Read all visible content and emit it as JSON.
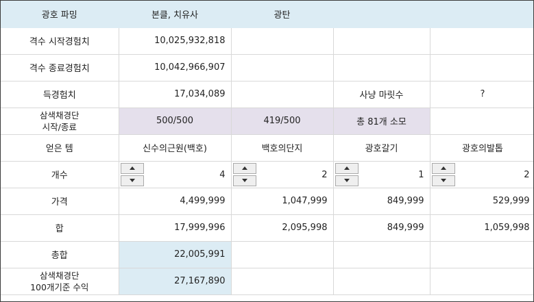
{
  "header": {
    "title": "광호 파밍",
    "col1": "본클, 치유사",
    "col2": "광탄"
  },
  "rows": {
    "start_exp": {
      "label": "격수 시작경험치",
      "value": "10,025,932,818"
    },
    "end_exp": {
      "label": "격수 종료경험치",
      "value": "10,042,966,907"
    },
    "gained_exp": {
      "label": "득경험치",
      "value": "17,034,089",
      "hunt_label": "사냥 마릿수",
      "hunt_value": "?"
    },
    "dice": {
      "label_line1": "삼색채경단",
      "label_line2": "시작/종료",
      "v1": "500/500",
      "v2": "419/500",
      "v3": "총 81개 소모"
    },
    "items": {
      "label": "얻은 템",
      "names": [
        "신수의근원(백호)",
        "백호의단지",
        "광호갈기",
        "광호의발톱"
      ]
    },
    "count": {
      "label": "개수",
      "values": [
        "4",
        "2",
        "1",
        "2"
      ]
    },
    "price": {
      "label": "가격",
      "values": [
        "4,499,999",
        "1,047,999",
        "849,999",
        "529,999"
      ]
    },
    "sum": {
      "label": "합",
      "values": [
        "17,999,996",
        "2,095,998",
        "849,999",
        "1,059,998"
      ]
    },
    "total": {
      "label": "총합",
      "value": "22,005,991"
    },
    "revenue": {
      "label_line1": "삼색채경단",
      "label_line2": "100개기준 수익",
      "value": "27,167,890"
    }
  }
}
